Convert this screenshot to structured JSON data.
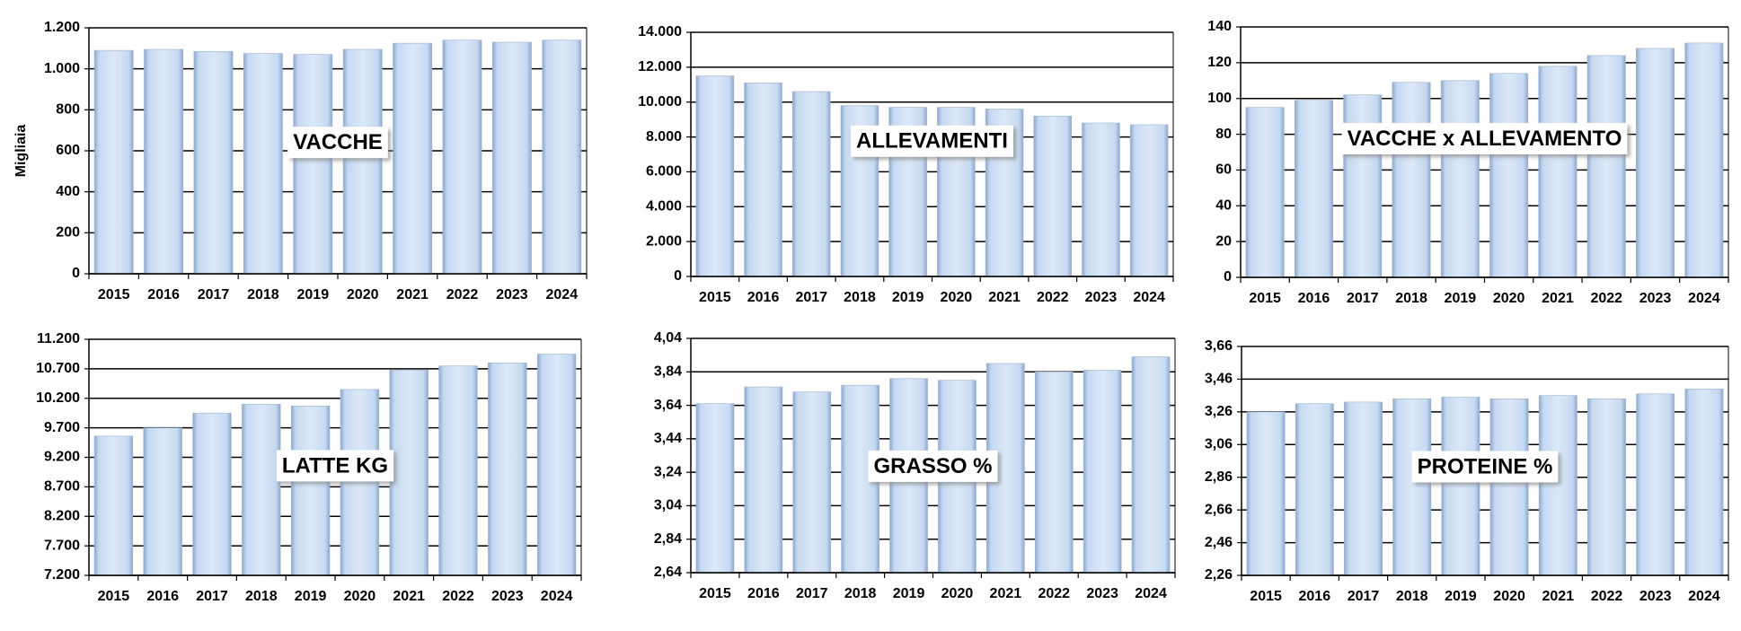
{
  "chart_data": [
    {
      "type": "bar",
      "annotation": "VACCHE",
      "y_label": "Migliaia",
      "color": "#c6d9f1",
      "grid": true,
      "categories": [
        "2015",
        "2016",
        "2017",
        "2018",
        "2019",
        "2020",
        "2021",
        "2022",
        "2023",
        "2024"
      ],
      "values": [
        1090,
        1095,
        1085,
        1075,
        1070,
        1095,
        1125,
        1140,
        1130,
        1140
      ],
      "ylim": [
        0,
        1200
      ],
      "yticks": [
        0,
        200,
        400,
        600,
        800,
        {
          "value": 1000,
          "label": "1.000"
        },
        {
          "value": 1200,
          "label": "1.200"
        }
      ]
    },
    {
      "type": "bar",
      "annotation": "ALLEVAMENTI",
      "color": "#c6d9f1",
      "grid": true,
      "categories": [
        "2015",
        "2016",
        "2017",
        "2018",
        "2019",
        "2020",
        "2021",
        "2022",
        "2023",
        "2024"
      ],
      "values": [
        11500,
        11100,
        10600,
        9800,
        9700,
        9700,
        9600,
        9200,
        8800,
        8700
      ],
      "ylim": [
        0,
        14000
      ],
      "yticks": [
        0,
        {
          "value": 2000,
          "label": "2.000"
        },
        {
          "value": 4000,
          "label": "4.000"
        },
        {
          "value": 6000,
          "label": "6.000"
        },
        {
          "value": 8000,
          "label": "8.000"
        },
        {
          "value": 10000,
          "label": "10.000"
        },
        {
          "value": 12000,
          "label": "12.000"
        },
        {
          "value": 14000,
          "label": "14.000"
        }
      ]
    },
    {
      "type": "bar",
      "annotation": "VACCHE x ALLEVAMENTO",
      "color": "#c6d9f1",
      "grid": true,
      "categories": [
        "2015",
        "2016",
        "2017",
        "2018",
        "2019",
        "2020",
        "2021",
        "2022",
        "2023",
        "2024"
      ],
      "values": [
        95,
        99,
        102,
        109,
        110,
        114,
        118,
        124,
        128,
        131
      ],
      "ylim": [
        0,
        140
      ],
      "yticks": [
        0,
        20,
        40,
        60,
        80,
        100,
        120,
        140
      ]
    },
    {
      "type": "bar",
      "annotation": "LATTE KG",
      "color": "#c6d9f1",
      "grid": true,
      "categories": [
        "2015",
        "2016",
        "2017",
        "2018",
        "2019",
        "2020",
        "2021",
        "2022",
        "2023",
        "2024"
      ],
      "values": [
        9560,
        9700,
        9950,
        10100,
        10070,
        10350,
        10680,
        10750,
        10800,
        10950
      ],
      "ylim": [
        7200,
        11200
      ],
      "yticks": [
        {
          "value": 7200,
          "label": "7.200"
        },
        {
          "value": 7700,
          "label": "7.700"
        },
        {
          "value": 8200,
          "label": "8.200"
        },
        {
          "value": 8700,
          "label": "8.700"
        },
        {
          "value": 9200,
          "label": "9.200"
        },
        {
          "value": 9700,
          "label": "9.700"
        },
        {
          "value": 10200,
          "label": "10.200"
        },
        {
          "value": 10700,
          "label": "10.700"
        },
        {
          "value": 11200,
          "label": "11.200"
        }
      ]
    },
    {
      "type": "bar",
      "annotation": "GRASSO %",
      "color": "#c6d9f1",
      "grid": true,
      "categories": [
        "2015",
        "2016",
        "2017",
        "2018",
        "2019",
        "2020",
        "2021",
        "2022",
        "2023",
        "2024"
      ],
      "values": [
        3.65,
        3.75,
        3.72,
        3.76,
        3.8,
        3.79,
        3.89,
        3.84,
        3.85,
        3.93
      ],
      "ylim": [
        2.64,
        4.04
      ],
      "yticks": [
        {
          "value": 2.64,
          "label": "2,64"
        },
        {
          "value": 2.84,
          "label": "2,84"
        },
        {
          "value": 3.04,
          "label": "3,04"
        },
        {
          "value": 3.24,
          "label": "3,24"
        },
        {
          "value": 3.44,
          "label": "3,44"
        },
        {
          "value": 3.64,
          "label": "3,64"
        },
        {
          "value": 3.84,
          "label": "3,84"
        },
        {
          "value": 4.04,
          "label": "4,04"
        }
      ]
    },
    {
      "type": "bar",
      "annotation": "PROTEINE %",
      "color": "#c6d9f1",
      "grid": true,
      "categories": [
        "2015",
        "2016",
        "2017",
        "2018",
        "2019",
        "2020",
        "2021",
        "2022",
        "2023",
        "2024"
      ],
      "values": [
        3.26,
        3.31,
        3.32,
        3.34,
        3.35,
        3.34,
        3.36,
        3.34,
        3.37,
        3.4
      ],
      "ylim": [
        2.26,
        3.66
      ],
      "yticks": [
        {
          "value": 2.26,
          "label": "2,26"
        },
        {
          "value": 2.46,
          "label": "2,46"
        },
        {
          "value": 2.66,
          "label": "2,66"
        },
        {
          "value": 2.86,
          "label": "2,86"
        },
        {
          "value": 3.06,
          "label": "3,06"
        },
        {
          "value": 3.26,
          "label": "3,26"
        },
        {
          "value": 3.46,
          "label": "3,46"
        },
        {
          "value": 3.66,
          "label": "3,66"
        }
      ]
    }
  ]
}
